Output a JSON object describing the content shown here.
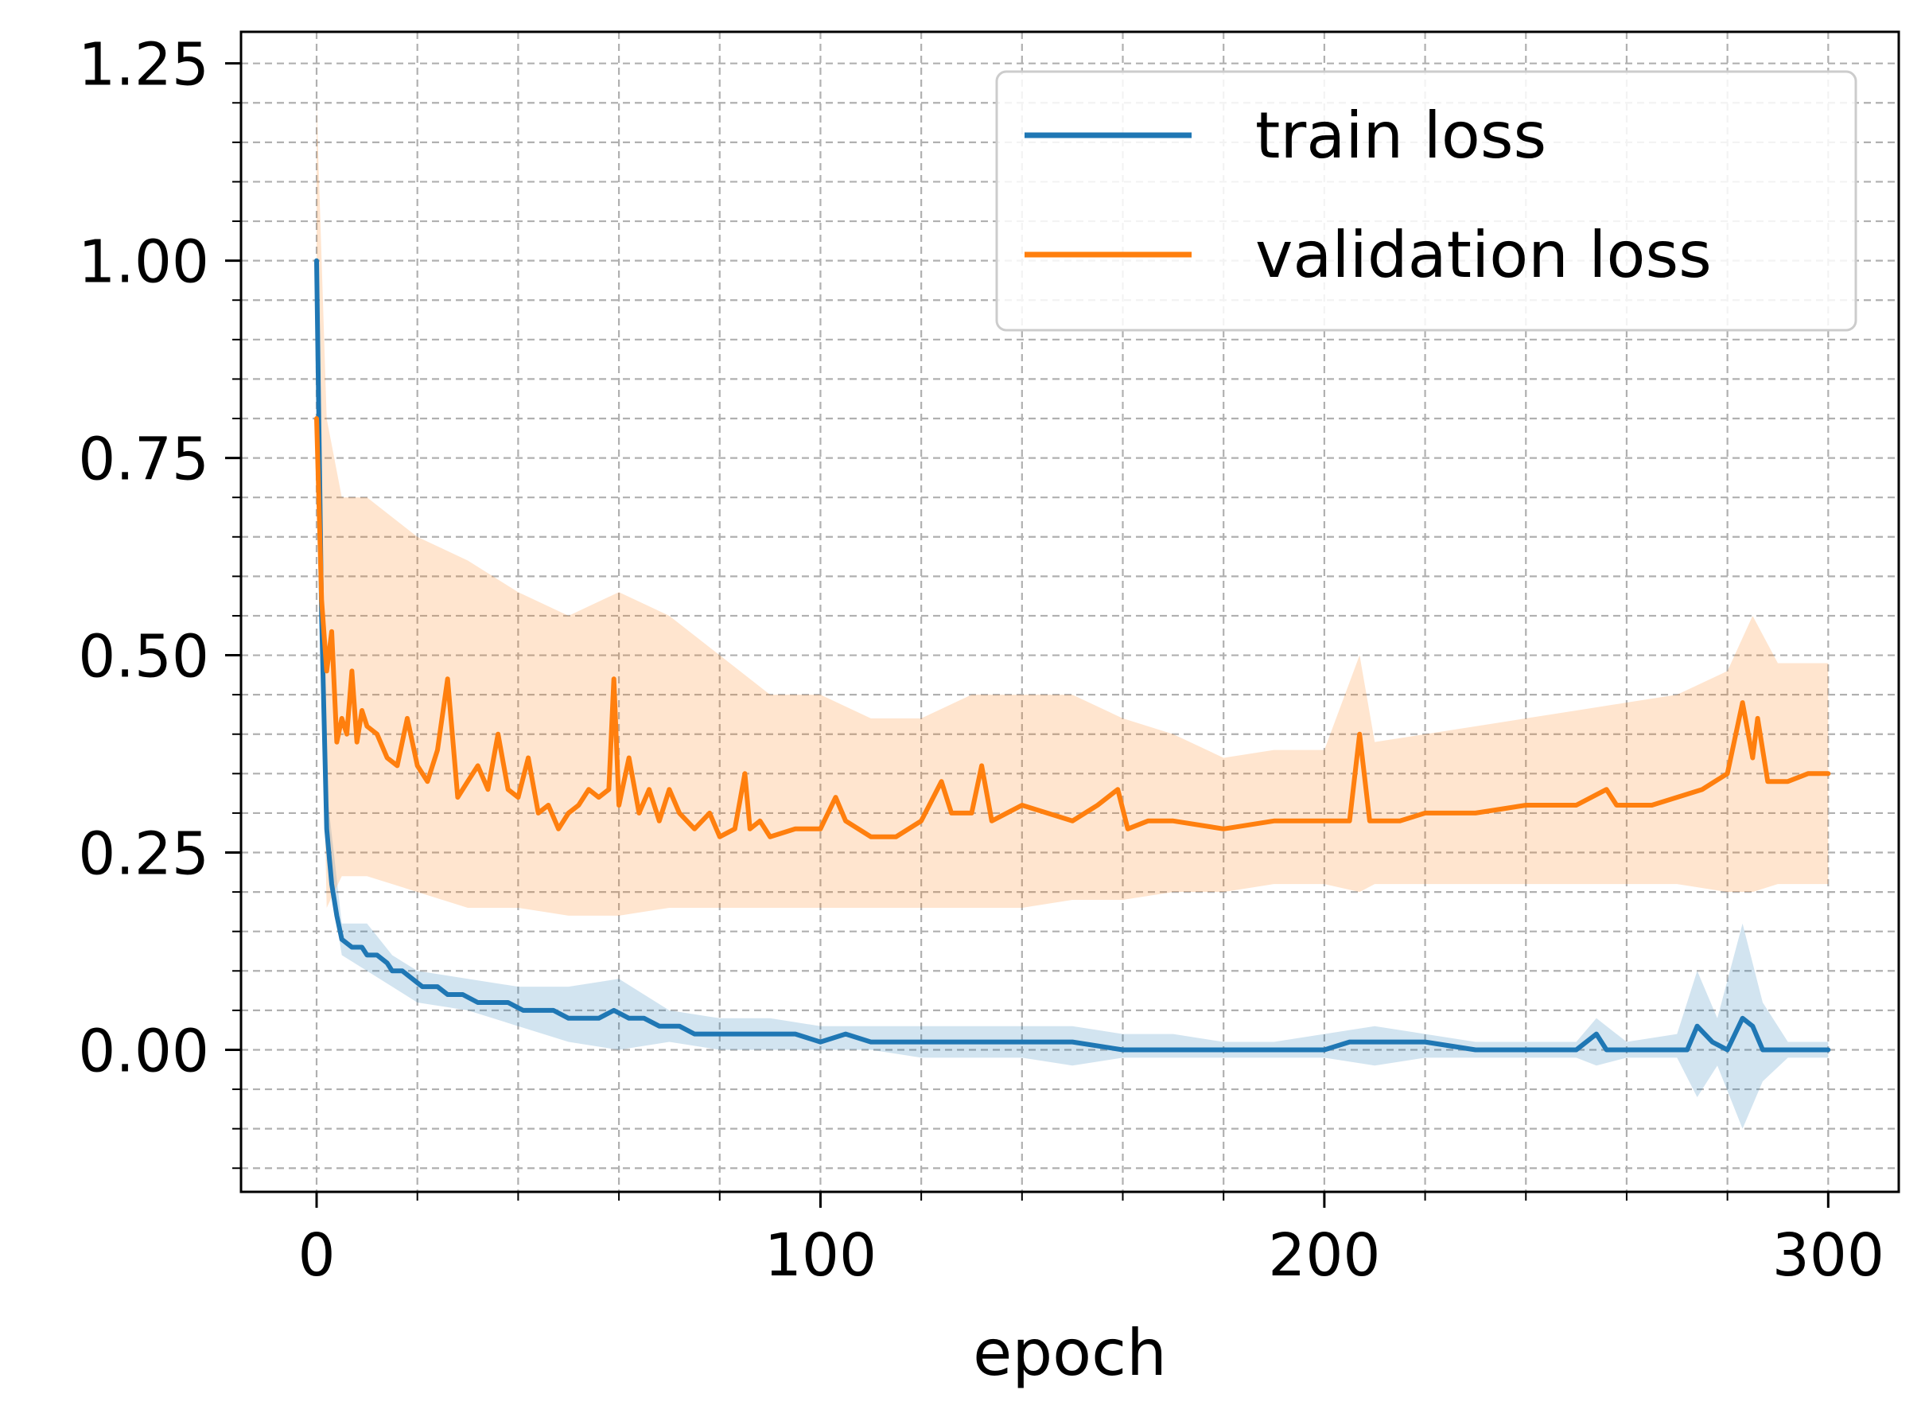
{
  "chart_data": {
    "type": "line",
    "title": "",
    "xlabel": "epoch",
    "ylabel": "",
    "xlim": [
      -15,
      314
    ],
    "ylim": [
      -0.18,
      1.29
    ],
    "grid": {
      "major": true,
      "minor": true,
      "style": "dashed"
    },
    "legend": {
      "placement": "top-right",
      "entries": [
        "train loss",
        "validation loss"
      ]
    },
    "x_ticks": [
      {
        "value": 0,
        "label": "0"
      },
      {
        "value": 100,
        "label": "100"
      },
      {
        "value": 200,
        "label": "200"
      },
      {
        "value": 300,
        "label": "300"
      }
    ],
    "y_ticks": [
      {
        "value": 0.0,
        "label": "0.00"
      },
      {
        "value": 0.25,
        "label": "0.25"
      },
      {
        "value": 0.5,
        "label": "0.50"
      },
      {
        "value": 0.75,
        "label": "0.75"
      },
      {
        "value": 1.0,
        "label": "1.00"
      },
      {
        "value": 1.25,
        "label": "1.25"
      }
    ],
    "x_minor_step": 20,
    "y_minor_step": 0.05,
    "series": [
      {
        "name": "train loss",
        "color": "#1f77b4",
        "band_color": "#1f77b4",
        "points": [
          [
            0,
            1.0
          ],
          [
            1,
            0.55
          ],
          [
            2,
            0.28
          ],
          [
            3,
            0.21
          ],
          [
            4,
            0.17
          ],
          [
            5,
            0.14
          ],
          [
            7,
            0.13
          ],
          [
            9,
            0.13
          ],
          [
            10,
            0.12
          ],
          [
            12,
            0.12
          ],
          [
            14,
            0.11
          ],
          [
            15,
            0.1
          ],
          [
            17,
            0.1
          ],
          [
            19,
            0.09
          ],
          [
            21,
            0.08
          ],
          [
            24,
            0.08
          ],
          [
            26,
            0.07
          ],
          [
            29,
            0.07
          ],
          [
            32,
            0.06
          ],
          [
            35,
            0.06
          ],
          [
            38,
            0.06
          ],
          [
            41,
            0.05
          ],
          [
            44,
            0.05
          ],
          [
            47,
            0.05
          ],
          [
            50,
            0.04
          ],
          [
            53,
            0.04
          ],
          [
            56,
            0.04
          ],
          [
            59,
            0.05
          ],
          [
            62,
            0.04
          ],
          [
            65,
            0.04
          ],
          [
            68,
            0.03
          ],
          [
            72,
            0.03
          ],
          [
            75,
            0.02
          ],
          [
            80,
            0.02
          ],
          [
            85,
            0.02
          ],
          [
            90,
            0.02
          ],
          [
            95,
            0.02
          ],
          [
            100,
            0.01
          ],
          [
            105,
            0.02
          ],
          [
            110,
            0.01
          ],
          [
            115,
            0.01
          ],
          [
            120,
            0.01
          ],
          [
            125,
            0.01
          ],
          [
            130,
            0.01
          ],
          [
            135,
            0.01
          ],
          [
            140,
            0.01
          ],
          [
            145,
            0.01
          ],
          [
            150,
            0.01
          ],
          [
            160,
            0.0
          ],
          [
            170,
            0.0
          ],
          [
            180,
            0.0
          ],
          [
            190,
            0.0
          ],
          [
            200,
            0.0
          ],
          [
            205,
            0.01
          ],
          [
            210,
            0.01
          ],
          [
            220,
            0.01
          ],
          [
            230,
            0.0
          ],
          [
            240,
            0.0
          ],
          [
            250,
            0.0
          ],
          [
            254,
            0.02
          ],
          [
            256,
            0.0
          ],
          [
            265,
            0.0
          ],
          [
            272,
            0.0
          ],
          [
            274,
            0.03
          ],
          [
            277,
            0.01
          ],
          [
            280,
            0.0
          ],
          [
            283,
            0.04
          ],
          [
            285,
            0.03
          ],
          [
            287,
            0.0
          ],
          [
            292,
            0.0
          ],
          [
            300,
            0.0
          ]
        ],
        "band": [
          [
            0,
            1.0,
            1.0
          ],
          [
            2,
            0.24,
            0.33
          ],
          [
            5,
            0.12,
            0.16
          ],
          [
            10,
            0.1,
            0.16
          ],
          [
            15,
            0.08,
            0.12
          ],
          [
            20,
            0.06,
            0.1
          ],
          [
            30,
            0.05,
            0.09
          ],
          [
            40,
            0.03,
            0.08
          ],
          [
            50,
            0.01,
            0.08
          ],
          [
            60,
            0.0,
            0.09
          ],
          [
            70,
            0.01,
            0.05
          ],
          [
            80,
            0.0,
            0.04
          ],
          [
            90,
            0.0,
            0.04
          ],
          [
            100,
            0.0,
            0.03
          ],
          [
            110,
            0.0,
            0.03
          ],
          [
            120,
            -0.01,
            0.03
          ],
          [
            130,
            -0.01,
            0.03
          ],
          [
            140,
            -0.01,
            0.03
          ],
          [
            150,
            -0.02,
            0.03
          ],
          [
            160,
            -0.01,
            0.02
          ],
          [
            170,
            -0.01,
            0.02
          ],
          [
            180,
            -0.01,
            0.01
          ],
          [
            190,
            -0.01,
            0.01
          ],
          [
            200,
            -0.01,
            0.02
          ],
          [
            210,
            -0.02,
            0.03
          ],
          [
            220,
            -0.01,
            0.02
          ],
          [
            230,
            -0.01,
            0.01
          ],
          [
            240,
            -0.01,
            0.01
          ],
          [
            250,
            -0.01,
            0.01
          ],
          [
            254,
            -0.02,
            0.04
          ],
          [
            260,
            -0.01,
            0.01
          ],
          [
            270,
            -0.01,
            0.02
          ],
          [
            274,
            -0.06,
            0.1
          ],
          [
            278,
            -0.02,
            0.04
          ],
          [
            283,
            -0.1,
            0.16
          ],
          [
            287,
            -0.04,
            0.06
          ],
          [
            292,
            -0.01,
            0.01
          ],
          [
            300,
            -0.01,
            0.01
          ]
        ]
      },
      {
        "name": "validation loss",
        "color": "#ff7f0e",
        "band_color": "#ff7f0e",
        "points": [
          [
            0,
            0.8
          ],
          [
            1,
            0.57
          ],
          [
            2,
            0.48
          ],
          [
            3,
            0.53
          ],
          [
            4,
            0.39
          ],
          [
            5,
            0.42
          ],
          [
            6,
            0.4
          ],
          [
            7,
            0.48
          ],
          [
            8,
            0.39
          ],
          [
            9,
            0.43
          ],
          [
            10,
            0.41
          ],
          [
            12,
            0.4
          ],
          [
            14,
            0.37
          ],
          [
            16,
            0.36
          ],
          [
            18,
            0.42
          ],
          [
            20,
            0.36
          ],
          [
            22,
            0.34
          ],
          [
            24,
            0.38
          ],
          [
            26,
            0.47
          ],
          [
            28,
            0.32
          ],
          [
            30,
            0.34
          ],
          [
            32,
            0.36
          ],
          [
            34,
            0.33
          ],
          [
            36,
            0.4
          ],
          [
            38,
            0.33
          ],
          [
            40,
            0.32
          ],
          [
            42,
            0.37
          ],
          [
            44,
            0.3
          ],
          [
            46,
            0.31
          ],
          [
            48,
            0.28
          ],
          [
            50,
            0.3
          ],
          [
            52,
            0.31
          ],
          [
            54,
            0.33
          ],
          [
            56,
            0.32
          ],
          [
            58,
            0.33
          ],
          [
            59,
            0.47
          ],
          [
            60,
            0.31
          ],
          [
            62,
            0.37
          ],
          [
            64,
            0.3
          ],
          [
            66,
            0.33
          ],
          [
            68,
            0.29
          ],
          [
            70,
            0.33
          ],
          [
            72,
            0.3
          ],
          [
            75,
            0.28
          ],
          [
            78,
            0.3
          ],
          [
            80,
            0.27
          ],
          [
            83,
            0.28
          ],
          [
            85,
            0.35
          ],
          [
            86,
            0.28
          ],
          [
            88,
            0.29
          ],
          [
            90,
            0.27
          ],
          [
            95,
            0.28
          ],
          [
            100,
            0.28
          ],
          [
            103,
            0.32
          ],
          [
            105,
            0.29
          ],
          [
            110,
            0.27
          ],
          [
            115,
            0.27
          ],
          [
            120,
            0.29
          ],
          [
            124,
            0.34
          ],
          [
            126,
            0.3
          ],
          [
            130,
            0.3
          ],
          [
            132,
            0.36
          ],
          [
            134,
            0.29
          ],
          [
            140,
            0.31
          ],
          [
            145,
            0.3
          ],
          [
            150,
            0.29
          ],
          [
            155,
            0.31
          ],
          [
            159,
            0.33
          ],
          [
            161,
            0.28
          ],
          [
            165,
            0.29
          ],
          [
            170,
            0.29
          ],
          [
            180,
            0.28
          ],
          [
            190,
            0.29
          ],
          [
            200,
            0.29
          ],
          [
            205,
            0.29
          ],
          [
            207,
            0.4
          ],
          [
            209,
            0.29
          ],
          [
            215,
            0.29
          ],
          [
            220,
            0.3
          ],
          [
            230,
            0.3
          ],
          [
            240,
            0.31
          ],
          [
            250,
            0.31
          ],
          [
            256,
            0.33
          ],
          [
            258,
            0.31
          ],
          [
            265,
            0.31
          ],
          [
            270,
            0.32
          ],
          [
            275,
            0.33
          ],
          [
            280,
            0.35
          ],
          [
            283,
            0.44
          ],
          [
            285,
            0.37
          ],
          [
            286,
            0.42
          ],
          [
            288,
            0.34
          ],
          [
            292,
            0.34
          ],
          [
            296,
            0.35
          ],
          [
            300,
            0.35
          ]
        ],
        "band": [
          [
            0,
            0.8,
            1.2
          ],
          [
            2,
            0.18,
            0.8
          ],
          [
            5,
            0.22,
            0.7
          ],
          [
            10,
            0.22,
            0.7
          ],
          [
            20,
            0.2,
            0.65
          ],
          [
            30,
            0.18,
            0.62
          ],
          [
            40,
            0.18,
            0.58
          ],
          [
            50,
            0.17,
            0.55
          ],
          [
            60,
            0.17,
            0.58
          ],
          [
            70,
            0.18,
            0.55
          ],
          [
            80,
            0.18,
            0.5
          ],
          [
            90,
            0.18,
            0.45
          ],
          [
            100,
            0.18,
            0.45
          ],
          [
            110,
            0.18,
            0.42
          ],
          [
            120,
            0.18,
            0.42
          ],
          [
            130,
            0.18,
            0.45
          ],
          [
            140,
            0.18,
            0.45
          ],
          [
            150,
            0.19,
            0.45
          ],
          [
            160,
            0.19,
            0.42
          ],
          [
            170,
            0.2,
            0.4
          ],
          [
            180,
            0.2,
            0.37
          ],
          [
            190,
            0.21,
            0.38
          ],
          [
            200,
            0.21,
            0.38
          ],
          [
            207,
            0.2,
            0.5
          ],
          [
            210,
            0.21,
            0.39
          ],
          [
            220,
            0.21,
            0.4
          ],
          [
            230,
            0.21,
            0.41
          ],
          [
            240,
            0.21,
            0.42
          ],
          [
            250,
            0.21,
            0.43
          ],
          [
            260,
            0.21,
            0.44
          ],
          [
            270,
            0.21,
            0.45
          ],
          [
            280,
            0.2,
            0.48
          ],
          [
            285,
            0.2,
            0.55
          ],
          [
            290,
            0.21,
            0.49
          ],
          [
            300,
            0.21,
            0.49
          ]
        ]
      }
    ]
  }
}
